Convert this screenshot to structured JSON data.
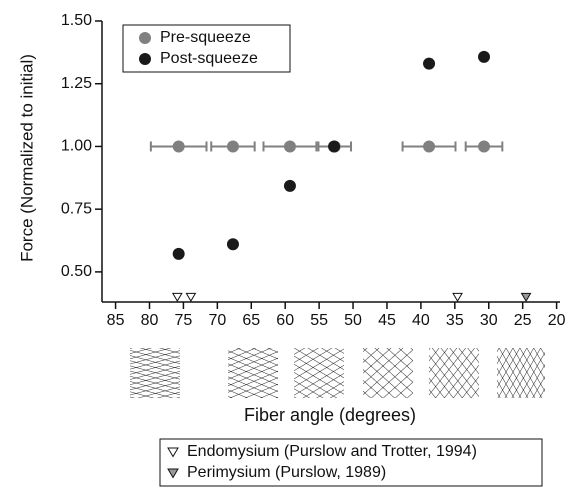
{
  "chart_data": {
    "type": "scatter",
    "xlabel": "Fiber angle (degrees)",
    "ylabel": "Force (Normalized to initial)",
    "xlim": [
      87,
      19.5
    ],
    "ylim": [
      0.38,
      1.5
    ],
    "xticks": [
      85,
      80,
      75,
      70,
      65,
      60,
      55,
      50,
      45,
      40,
      35,
      30,
      25,
      20
    ],
    "yticks": [
      {
        "value": 0.5,
        "label": "0.50"
      },
      {
        "value": 0.75,
        "label": "0.75"
      },
      {
        "value": 1.0,
        "label": "1.00"
      },
      {
        "value": 1.25,
        "label": "1.25"
      },
      {
        "value": 1.5,
        "label": "1.50"
      }
    ],
    "series": [
      {
        "name": "Pre-squeeze",
        "color": "#808080",
        "x": [
          75.7,
          67.7,
          59.3,
          52.7,
          38.8,
          30.7
        ],
        "values": [
          1.0,
          1.0,
          1.0,
          1.0,
          1.0,
          1.0
        ],
        "xerr": [
          4.1,
          3.2,
          3.9,
          2.4,
          3.9,
          2.7
        ]
      },
      {
        "name": "Post-squeeze",
        "color": "#1a1a1a",
        "x": [
          75.7,
          67.7,
          59.3,
          52.8,
          38.8,
          30.7
        ],
        "values": [
          0.572,
          0.61,
          0.843,
          1.0,
          1.33,
          1.357
        ]
      }
    ],
    "reference_markers": [
      {
        "name": "Endomysium (Purslow and Trotter, 1994)",
        "color": "#ffffff",
        "x": [
          75.9,
          73.9,
          34.6
        ]
      },
      {
        "name": "Perimysium (Purslow, 1989)",
        "color": "#999999",
        "x": [
          24.5
        ]
      }
    ]
  }
}
